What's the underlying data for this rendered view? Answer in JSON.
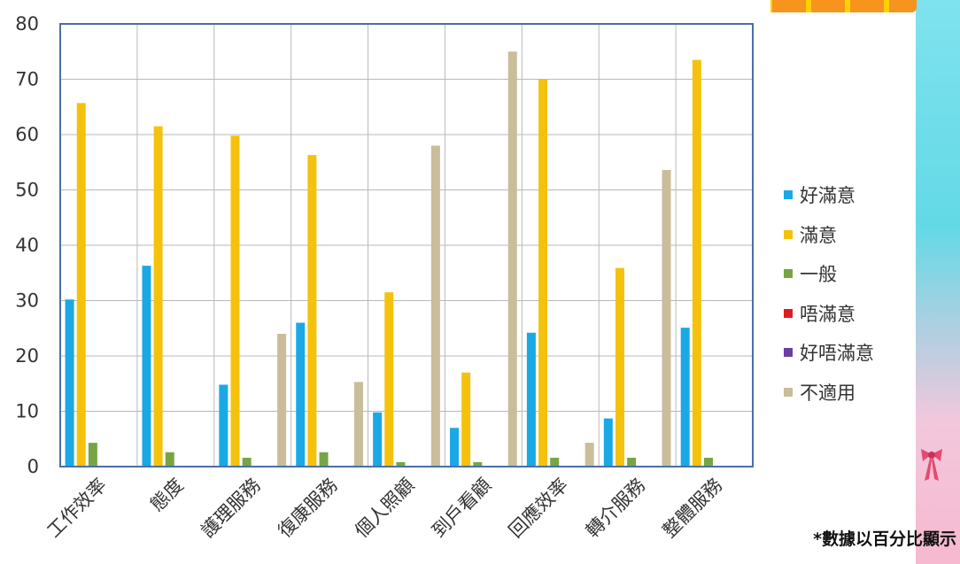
{
  "chart_data": {
    "type": "bar",
    "categories": [
      "工作效率",
      "態度",
      "護理服務",
      "復康服務",
      "個人照顧",
      "到戶看顧",
      "回應效率",
      "轉介服務",
      "整體服務"
    ],
    "series": [
      {
        "name": "好滿意",
        "color": "#1aa9e6",
        "values": [
          30.2,
          36.3,
          14.8,
          26.0,
          9.8,
          7.0,
          24.2,
          8.7,
          25.1
        ]
      },
      {
        "name": "滿意",
        "color": "#f4c20d",
        "values": [
          65.7,
          61.5,
          59.8,
          56.3,
          31.5,
          17.0,
          70.0,
          35.9,
          73.5
        ]
      },
      {
        "name": "一般",
        "color": "#77a545",
        "values": [
          4.3,
          2.6,
          1.6,
          2.6,
          0.8,
          0.8,
          1.6,
          1.6,
          1.6
        ]
      },
      {
        "name": "唔滿意",
        "color": "#e11b22",
        "values": [
          0,
          0,
          0,
          0,
          0,
          0,
          0,
          0,
          0
        ]
      },
      {
        "name": "好唔滿意",
        "color": "#6a3ea1",
        "values": [
          0,
          0,
          0,
          0,
          0,
          0,
          0,
          0,
          0
        ]
      },
      {
        "name": "不適用",
        "color": "#c9bd9a",
        "values": [
          0,
          0,
          24.0,
          15.3,
          58.0,
          75.0,
          4.3,
          53.6,
          0
        ]
      }
    ],
    "ylim": [
      0,
      80
    ],
    "yticks": [
      0,
      10,
      20,
      30,
      40,
      50,
      60,
      70,
      80
    ],
    "grid": true,
    "legend": "right"
  },
  "footnote": "*數據以百分比顯示"
}
